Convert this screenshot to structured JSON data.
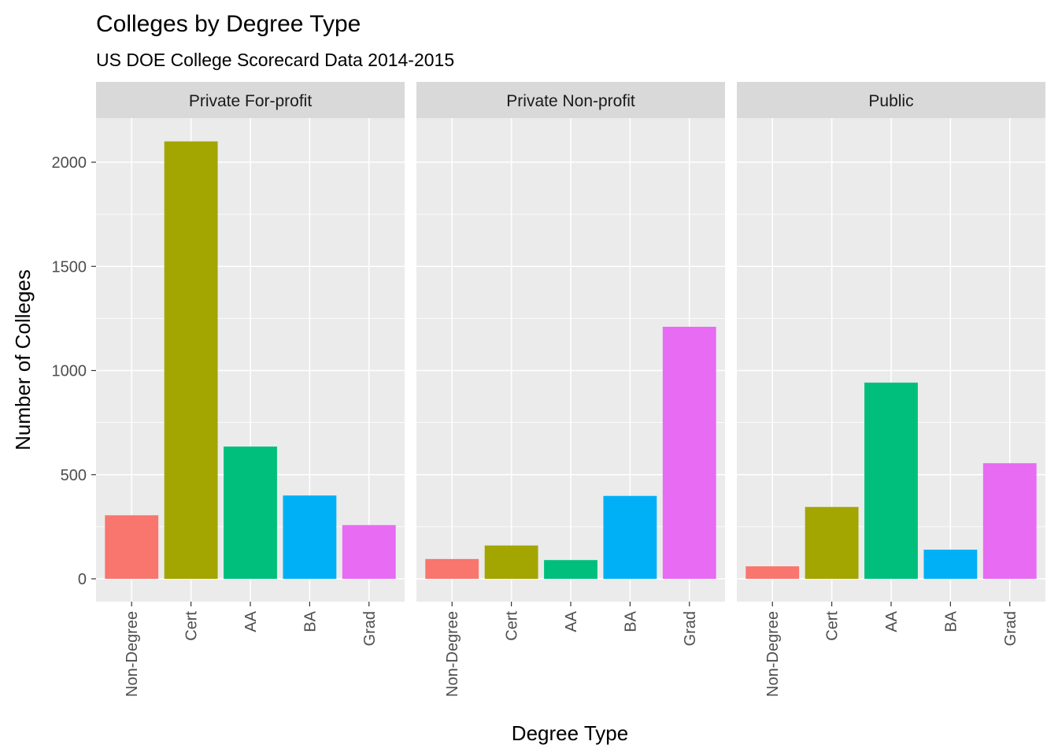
{
  "chart_data": {
    "type": "bar",
    "title": "Colleges by Degree Type",
    "subtitle": "US DOE College Scorecard Data 2014-2015",
    "xlabel": "Degree Type",
    "ylabel": "Number of Colleges",
    "categories": [
      "Non-Degree",
      "Cert",
      "AA",
      "BA",
      "Grad"
    ],
    "colors": [
      "#F8766D",
      "#A3A500",
      "#00BF7D",
      "#00B0F6",
      "#E76BF3"
    ],
    "ylim": [
      0,
      2200
    ],
    "yticks": [
      0,
      500,
      1000,
      1500,
      2000
    ],
    "yticklabels": [
      "0",
      "500",
      "1000",
      "1500",
      "2000"
    ],
    "grid": true,
    "legend": "none",
    "facets": [
      {
        "name": "Private For-profit",
        "values": [
          305,
          2100,
          635,
          400,
          258
        ]
      },
      {
        "name": "Private Non-profit",
        "values": [
          95,
          160,
          90,
          398,
          1210
        ]
      },
      {
        "name": "Public",
        "values": [
          60,
          345,
          942,
          140,
          555
        ]
      }
    ]
  }
}
